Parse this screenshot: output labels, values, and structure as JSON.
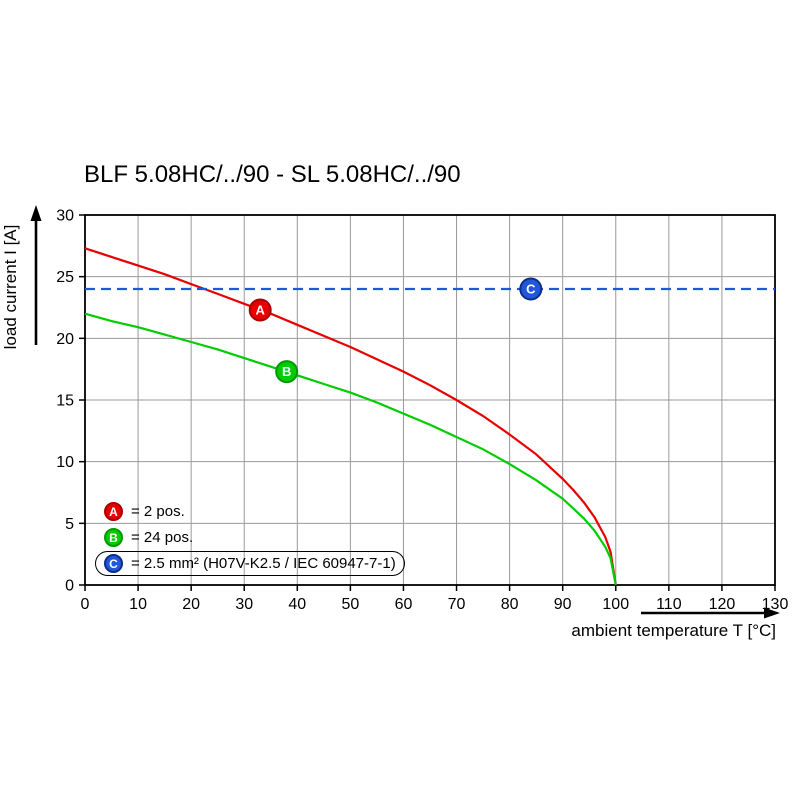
{
  "chart_data": {
    "type": "line",
    "title": "BLF 5.08HC/../90 - SL 5.08HC/../90",
    "xlabel": "ambient temperature T [°C]",
    "ylabel": "load current I [A]",
    "xlim": [
      0,
      130
    ],
    "ylim": [
      0,
      30
    ],
    "x_ticks": [
      0,
      10,
      20,
      30,
      40,
      50,
      60,
      70,
      80,
      90,
      100,
      110,
      120,
      130
    ],
    "y_ticks": [
      0,
      5,
      10,
      15,
      20,
      25,
      30
    ],
    "grid": true,
    "legend_position": "lower-left",
    "series": [
      {
        "name": "A",
        "label": "= 2 pos.",
        "color": "#e60000",
        "style": "solid",
        "x": [
          0,
          5,
          10,
          15,
          20,
          25,
          30,
          35,
          40,
          45,
          50,
          55,
          60,
          65,
          70,
          75,
          80,
          85,
          90,
          92,
          94,
          96,
          98,
          99,
          100
        ],
        "y": [
          27.3,
          26.6,
          25.9,
          25.2,
          24.4,
          23.6,
          22.8,
          22.0,
          21.1,
          20.2,
          19.3,
          18.3,
          17.3,
          16.2,
          15.0,
          13.7,
          12.2,
          10.6,
          8.6,
          7.7,
          6.7,
          5.5,
          3.9,
          2.7,
          0
        ]
      },
      {
        "name": "B",
        "label": "= 24 pos.",
        "color": "#00cc00",
        "style": "solid",
        "x": [
          0,
          5,
          10,
          15,
          20,
          25,
          30,
          35,
          40,
          45,
          50,
          55,
          60,
          65,
          70,
          75,
          80,
          85,
          90,
          92,
          94,
          96,
          98,
          99,
          100
        ],
        "y": [
          22.0,
          21.4,
          20.9,
          20.3,
          19.7,
          19.1,
          18.4,
          17.7,
          17.0,
          16.3,
          15.6,
          14.8,
          13.9,
          13.0,
          12.0,
          11.0,
          9.8,
          8.5,
          7.0,
          6.2,
          5.4,
          4.4,
          3.1,
          2.2,
          0
        ]
      },
      {
        "name": "C",
        "label": "= 2.5 mm² (H07V-K2.5 / IEC 60947-7-1)",
        "color": "#2257db",
        "style": "dashed",
        "x": [
          0,
          130
        ],
        "y": [
          24,
          24
        ]
      }
    ],
    "markers": [
      {
        "letter": "A",
        "series": "A",
        "x": 33,
        "y": 22.3,
        "color": "#e60000",
        "edge": "#aa0000"
      },
      {
        "letter": "B",
        "series": "B",
        "x": 38,
        "y": 17.3,
        "color": "#00cc00",
        "edge": "#009900"
      },
      {
        "letter": "C",
        "series": "C",
        "x": 84,
        "y": 24,
        "color": "#2257db",
        "edge": "#0b2f86"
      }
    ]
  },
  "legend": {
    "items": [
      {
        "letter": "A",
        "label": "= 2 pos.",
        "color": "#e60000",
        "edge": "#aa0000",
        "boxed": false
      },
      {
        "letter": "B",
        "label": "= 24 pos.",
        "color": "#00cc00",
        "edge": "#009900",
        "boxed": false
      },
      {
        "letter": "C",
        "label": "= 2.5 mm² (H07V-K2.5 / IEC 60947-7-1)",
        "color": "#2257db",
        "edge": "#0b2f86",
        "boxed": true
      }
    ]
  }
}
